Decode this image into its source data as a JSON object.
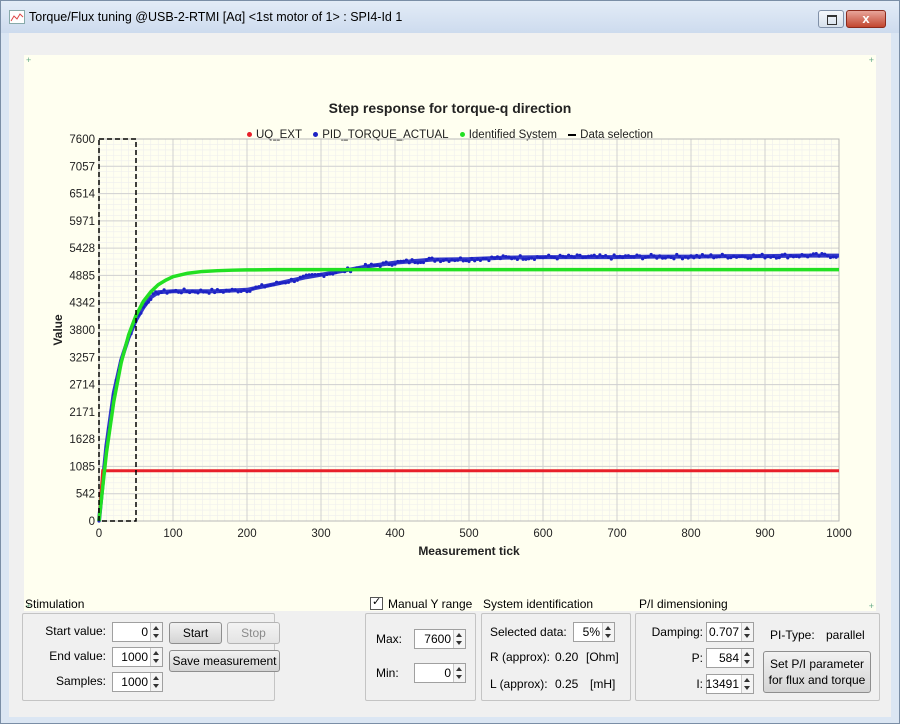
{
  "window": {
    "title": "Torque/Flux tuning @USB-2-RTMI [Aα] <1st motor of 1> : SPI4-Id 1",
    "restore_label": "",
    "close_label": "x"
  },
  "chart_data": {
    "type": "line",
    "title": "Step response for torque-q direction",
    "xlabel": "Measurement tick",
    "ylabel": "Value",
    "xlim": [
      0,
      1000
    ],
    "ylim": [
      0,
      7600
    ],
    "xticks": [
      "0",
      "100",
      "200",
      "300",
      "400",
      "500",
      "600",
      "700",
      "800",
      "900",
      "1000"
    ],
    "yticks": [
      "0",
      "542",
      "1085",
      "1628",
      "2171",
      "2714",
      "3257",
      "3800",
      "4342",
      "4885",
      "5428",
      "5971",
      "6514",
      "7057",
      "7600"
    ],
    "legend_position": "top",
    "grid": true,
    "series": [
      {
        "name": "UQ_EXT",
        "color": "#e8202a",
        "style": "line",
        "x": [
          0,
          5,
          1000
        ],
        "y": [
          0,
          1000,
          1000
        ]
      },
      {
        "name": "PID_TORQUE_ACTUAL",
        "color": "#1c22c4",
        "style": "markers",
        "x": [
          0,
          10,
          20,
          30,
          40,
          50,
          60,
          70,
          80,
          100,
          130,
          160,
          200,
          240,
          280,
          320,
          360,
          400,
          450,
          500,
          550,
          600,
          650,
          700,
          750,
          800,
          850,
          900,
          950,
          1000
        ],
        "y": [
          0,
          1500,
          2550,
          3200,
          3650,
          4000,
          4250,
          4450,
          4550,
          4570,
          4570,
          4570,
          4600,
          4720,
          4850,
          4950,
          5060,
          5140,
          5200,
          5210,
          5240,
          5250,
          5250,
          5250,
          5260,
          5260,
          5270,
          5270,
          5280,
          5280
        ]
      },
      {
        "name": "Identified System",
        "color": "#22e022",
        "style": "line",
        "x": [
          0,
          10,
          20,
          30,
          40,
          50,
          60,
          70,
          80,
          90,
          100,
          120,
          140,
          160,
          180,
          200,
          240,
          280,
          1000
        ],
        "y": [
          0,
          1350,
          2380,
          3150,
          3700,
          4090,
          4370,
          4560,
          4700,
          4790,
          4860,
          4930,
          4965,
          4980,
          4990,
          4995,
          5000,
          5000,
          5000
        ]
      },
      {
        "name": "Data selection",
        "color": "#000000",
        "style": "dashed-box",
        "x": [
          0,
          50
        ],
        "y": [
          0,
          7600
        ]
      }
    ]
  },
  "controls": {
    "stimulation": {
      "title": "Stimulation",
      "start_label": "Start value:",
      "start_value": "0",
      "end_label": "End value:",
      "end_value": "1000",
      "samples_label": "Samples:",
      "samples_value": "1000",
      "start_button": "Start",
      "stop_button": "Stop",
      "save_button": "Save measurement"
    },
    "yrange": {
      "checkbox_label": "Manual Y  range",
      "checked": true,
      "max_label": "Max:",
      "max_value": "7600",
      "min_label": "Min:",
      "min_value": "0"
    },
    "sysid": {
      "title": "System identification",
      "selected_label": "Selected data:",
      "selected_value": "5%",
      "r_label": "R (approx):",
      "r_value": "0.20",
      "r_unit": "[Ohm]",
      "l_label": "L (approx):",
      "l_value": "0.25",
      "l_unit": "[mH]"
    },
    "pi": {
      "title": "P/I dimensioning",
      "damping_label": "Damping:",
      "damping_value": "0.707",
      "p_label": "P:",
      "p_value": "584",
      "i_label": "I:",
      "i_value": "13491",
      "type_label": "PI-Type:",
      "type_value": "parallel",
      "set_button_line1": "Set P/I parameter",
      "set_button_line2": "for flux and torque"
    }
  }
}
